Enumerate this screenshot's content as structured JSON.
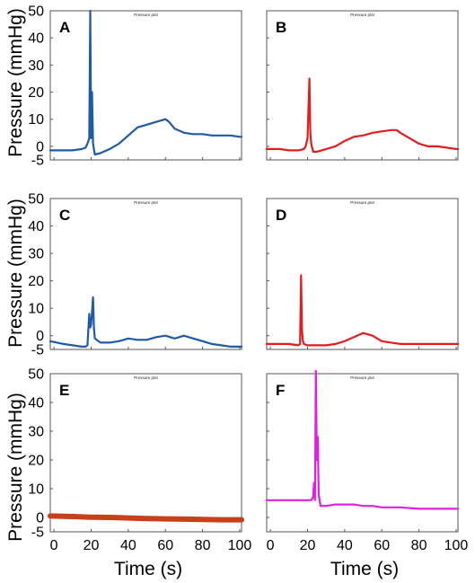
{
  "figure": {
    "ylabel": "Pressure (mmHg)",
    "xlabel": "Time (s)",
    "panel_title": "Pressure plot"
  },
  "chart_data": [
    {
      "type": "line",
      "panel": "A",
      "title": "Pressure plot",
      "color": "#1f5aa6",
      "xlim": [
        -2,
        101
      ],
      "ylim": [
        -5,
        50
      ],
      "ytick_labels": [
        "50",
        "40",
        "30",
        "20",
        "10",
        "0",
        "-5"
      ],
      "yticks": [
        50,
        40,
        30,
        20,
        10,
        0,
        -5
      ],
      "show_y_ticklabels": true,
      "show_x_ticklabels": false,
      "xticks": [
        0,
        20,
        40,
        60,
        80,
        100
      ],
      "xtick_labels": [
        "0",
        "20",
        "40",
        "60",
        "80",
        "100"
      ],
      "series": [
        {
          "x": [
            -2,
            5,
            10,
            15,
            17,
            18,
            19,
            19.5,
            20,
            20.5,
            21,
            22,
            25,
            30,
            35,
            40,
            45,
            50,
            55,
            60,
            62,
            65,
            70,
            75,
            80,
            85,
            90,
            95,
            100,
            101
          ],
          "y": [
            -1.5,
            -1.5,
            -1.5,
            -1,
            -0.5,
            1,
            3,
            50,
            3,
            20,
            1,
            -3,
            -2.5,
            -1,
            1,
            4,
            7,
            8,
            9,
            10,
            9,
            6.5,
            5,
            4.5,
            4.5,
            4,
            4,
            4,
            3.5,
            3.5
          ]
        }
      ]
    },
    {
      "type": "line",
      "panel": "B",
      "title": "Pressure plot",
      "color": "#e11d1d",
      "xlim": [
        -2,
        101
      ],
      "ylim": [
        -5,
        50
      ],
      "yticks": [
        50,
        40,
        30,
        20,
        10,
        0,
        -5
      ],
      "show_y_ticklabels": false,
      "show_x_ticklabels": false,
      "xticks": [
        0,
        20,
        40,
        60,
        80,
        100
      ],
      "series": [
        {
          "x": [
            -2,
            5,
            10,
            15,
            18,
            19,
            20,
            21,
            21.5,
            22,
            23,
            25,
            30,
            35,
            40,
            45,
            50,
            55,
            60,
            65,
            68,
            70,
            75,
            80,
            85,
            90,
            95,
            100,
            101
          ],
          "y": [
            -1,
            -1,
            -1.5,
            -1.5,
            -1,
            0,
            3,
            25,
            5,
            1,
            -2,
            -2,
            -1,
            0,
            2,
            3.5,
            4,
            5,
            5.5,
            6,
            6,
            5,
            3,
            1,
            0,
            0,
            -0.5,
            -1,
            -1
          ]
        }
      ]
    },
    {
      "type": "line",
      "panel": "C",
      "title": "Pressure plot",
      "color": "#1f5aa6",
      "xlim": [
        -2,
        101
      ],
      "ylim": [
        -5,
        50
      ],
      "ytick_labels": [
        "50",
        "40",
        "30",
        "20",
        "10",
        "0",
        "-5"
      ],
      "yticks": [
        50,
        40,
        30,
        20,
        10,
        0,
        -5
      ],
      "show_y_ticklabels": true,
      "show_x_ticklabels": false,
      "xticks": [
        0,
        20,
        40,
        60,
        80,
        100
      ],
      "series": [
        {
          "x": [
            -2,
            5,
            10,
            15,
            17,
            18,
            19,
            19.5,
            20,
            21,
            21.5,
            22,
            25,
            30,
            35,
            40,
            45,
            50,
            55,
            60,
            65,
            70,
            75,
            80,
            85,
            90,
            95,
            100,
            101
          ],
          "y": [
            -2,
            -3,
            -3.5,
            -4,
            -4,
            -3.5,
            8,
            3,
            4,
            14,
            3,
            -1,
            -2.5,
            -2.5,
            -2,
            -1,
            -1.5,
            -1.5,
            -0.5,
            0,
            -1,
            0,
            -1,
            -2,
            -3,
            -3.5,
            -4,
            -4,
            -4
          ]
        }
      ]
    },
    {
      "type": "line",
      "panel": "D",
      "title": "Pressure plot",
      "color": "#e11d1d",
      "xlim": [
        -2,
        101
      ],
      "ylim": [
        -5,
        50
      ],
      "yticks": [
        50,
        40,
        30,
        20,
        10,
        0,
        -5
      ],
      "show_y_ticklabels": false,
      "show_x_ticklabels": false,
      "xticks": [
        0,
        20,
        40,
        60,
        80,
        100
      ],
      "series": [
        {
          "x": [
            -2,
            5,
            10,
            15,
            16,
            16.5,
            17,
            17.5,
            18,
            20,
            25,
            30,
            35,
            40,
            45,
            50,
            55,
            60,
            65,
            70,
            75,
            80,
            85,
            90,
            95,
            100,
            101
          ],
          "y": [
            -3,
            -3,
            -3,
            -3.5,
            -3,
            22,
            2,
            -2,
            -3,
            -3.5,
            -3.5,
            -3.5,
            -3,
            -2,
            -0.5,
            1,
            0,
            -2,
            -2.5,
            -3,
            -3,
            -3,
            -3,
            -3,
            -3,
            -3,
            -3
          ]
        }
      ]
    },
    {
      "type": "line",
      "panel": "E",
      "title": "Pressure plot",
      "color": "#c8401a",
      "xlim": [
        -2,
        101
      ],
      "ylim": [
        -5,
        50
      ],
      "ytick_labels": [
        "50",
        "40",
        "30",
        "20",
        "10",
        "0",
        "-5"
      ],
      "yticks": [
        50,
        40,
        30,
        20,
        10,
        0,
        -5
      ],
      "xtick_labels": [
        "0",
        "20",
        "40",
        "60",
        "80",
        "100"
      ],
      "xticks": [
        0,
        20,
        40,
        60,
        80,
        100
      ],
      "show_y_ticklabels": true,
      "show_x_ticklabels": true,
      "series": [
        {
          "x": [
            -2,
            10,
            20,
            30,
            40,
            50,
            60,
            70,
            80,
            90,
            100,
            101
          ],
          "y": [
            0.5,
            0.3,
            0.1,
            0,
            -0.2,
            -0.4,
            -0.5,
            -0.6,
            -0.7,
            -0.8,
            -0.8,
            -0.8
          ]
        }
      ]
    },
    {
      "type": "line",
      "panel": "F",
      "title": "Pressure plot",
      "color": "#e020e0",
      "xlim": [
        -2,
        101
      ],
      "ylim": [
        -5,
        50
      ],
      "yticks": [
        50,
        40,
        30,
        20,
        10,
        0,
        -5
      ],
      "show_y_ticklabels": false,
      "xtick_labels": [
        "0",
        "20",
        "40",
        "60",
        "80",
        "100"
      ],
      "xticks": [
        0,
        20,
        40,
        60,
        80,
        100
      ],
      "show_x_ticklabels": true,
      "series": [
        {
          "x": [
            -2,
            5,
            10,
            15,
            20,
            22,
            23,
            23.5,
            24,
            24.5,
            25,
            25.5,
            26,
            27,
            28,
            30,
            35,
            40,
            45,
            50,
            55,
            60,
            70,
            80,
            90,
            100,
            101
          ],
          "y": [
            6,
            6,
            6,
            6,
            6,
            6,
            7,
            12,
            6,
            51,
            20,
            28,
            8,
            4,
            4,
            4,
            4.5,
            4.5,
            4.5,
            4,
            4,
            3.5,
            3.5,
            3,
            3,
            3,
            3
          ]
        }
      ]
    }
  ]
}
